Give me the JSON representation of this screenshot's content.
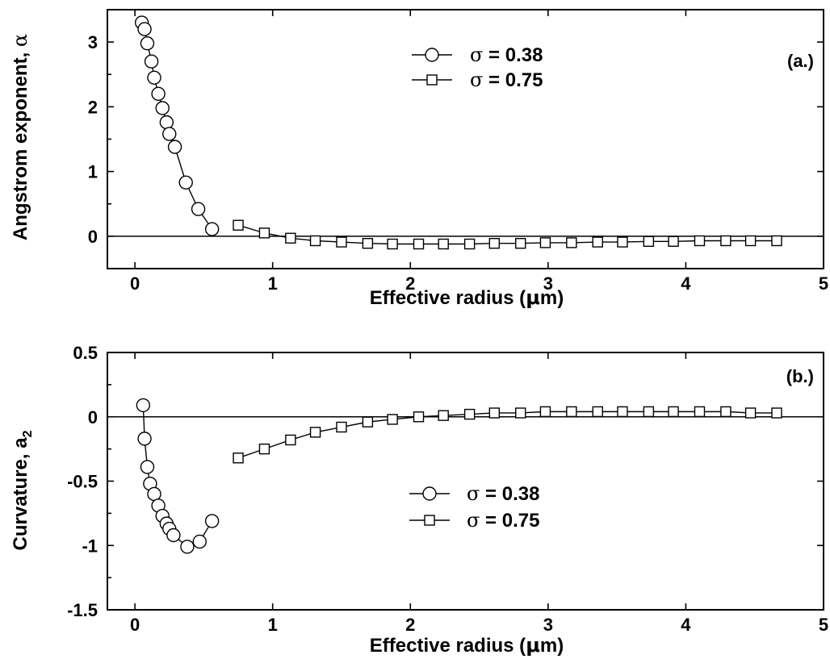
{
  "chart_data": [
    {
      "type": "scatter",
      "panel_label": "(a.)",
      "xlabel_prefix": "Effective radius (",
      "xlabel_mu": "μ",
      "xlabel_suffix": "m)",
      "ylabel_prefix": "Angstrom exponent, ",
      "ylabel_symbol": "α",
      "xlim": [
        -0.2,
        5
      ],
      "ylim": [
        -0.5,
        3.5
      ],
      "xticks": [
        0,
        1,
        2,
        3,
        4,
        5
      ],
      "xtick_labels": [
        "0",
        "1",
        "2",
        "3",
        "4",
        "5"
      ],
      "yticks": [
        0,
        1,
        2,
        3
      ],
      "ytick_labels": [
        "0",
        "1",
        "2",
        "3"
      ],
      "zero_line": true,
      "legend": "top-center",
      "series": [
        {
          "name_symbol": "σ",
          "name_rest": " = 0.38",
          "marker": "circle",
          "x": [
            0.05,
            0.07,
            0.09,
            0.12,
            0.14,
            0.17,
            0.2,
            0.23,
            0.25,
            0.29,
            0.37,
            0.46,
            0.56
          ],
          "y": [
            3.3,
            3.2,
            2.98,
            2.7,
            2.45,
            2.2,
            1.98,
            1.76,
            1.58,
            1.38,
            0.83,
            0.42,
            0.11
          ]
        },
        {
          "name_symbol": "σ",
          "name_rest": " = 0.75",
          "marker": "square",
          "x": [
            0.75,
            0.94,
            1.13,
            1.31,
            1.5,
            1.69,
            1.87,
            2.06,
            2.24,
            2.43,
            2.61,
            2.8,
            2.98,
            3.17,
            3.36,
            3.54,
            3.73,
            3.91,
            4.1,
            4.29,
            4.47,
            4.66
          ],
          "y": [
            0.17,
            0.05,
            -0.03,
            -0.07,
            -0.09,
            -0.11,
            -0.12,
            -0.12,
            -0.12,
            -0.12,
            -0.11,
            -0.11,
            -0.1,
            -0.1,
            -0.09,
            -0.09,
            -0.08,
            -0.08,
            -0.07,
            -0.07,
            -0.07,
            -0.07
          ]
        }
      ]
    },
    {
      "type": "scatter",
      "panel_label": "(b.)",
      "xlabel_prefix": "Effective radius (",
      "xlabel_mu": "μ",
      "xlabel_suffix": "m)",
      "ylabel_prefix": "Curvature,  a",
      "ylabel_sub": "2",
      "xlim": [
        -0.2,
        5
      ],
      "ylim": [
        -1.5,
        0.5
      ],
      "xticks": [
        0,
        1,
        2,
        3,
        4,
        5
      ],
      "xtick_labels": [
        "0",
        "1",
        "2",
        "3",
        "4",
        "5"
      ],
      "yticks": [
        -1.5,
        -1,
        -0.5,
        0,
        0.5
      ],
      "ytick_labels": [
        "-1.5",
        "-1",
        "-0.5",
        "0",
        "0.5"
      ],
      "zero_line": true,
      "legend": "center",
      "series": [
        {
          "name_symbol": "σ",
          "name_rest": " = 0.38",
          "marker": "circle",
          "x": [
            0.06,
            0.07,
            0.09,
            0.11,
            0.14,
            0.17,
            0.2,
            0.23,
            0.25,
            0.28,
            0.38,
            0.47,
            0.56
          ],
          "y": [
            0.09,
            -0.17,
            -0.39,
            -0.52,
            -0.6,
            -0.69,
            -0.77,
            -0.83,
            -0.87,
            -0.92,
            -1.01,
            -0.97,
            -0.81
          ]
        },
        {
          "name_symbol": "σ",
          "name_rest": " = 0.75",
          "marker": "square",
          "x": [
            0.75,
            0.94,
            1.13,
            1.31,
            1.5,
            1.69,
            1.87,
            2.06,
            2.24,
            2.43,
            2.61,
            2.8,
            2.98,
            3.17,
            3.36,
            3.54,
            3.73,
            3.91,
            4.1,
            4.29,
            4.47,
            4.66
          ],
          "y": [
            -0.32,
            -0.25,
            -0.18,
            -0.12,
            -0.08,
            -0.04,
            -0.02,
            0.0,
            0.01,
            0.02,
            0.03,
            0.03,
            0.04,
            0.04,
            0.04,
            0.04,
            0.04,
            0.04,
            0.04,
            0.04,
            0.03,
            0.03
          ]
        }
      ]
    }
  ]
}
